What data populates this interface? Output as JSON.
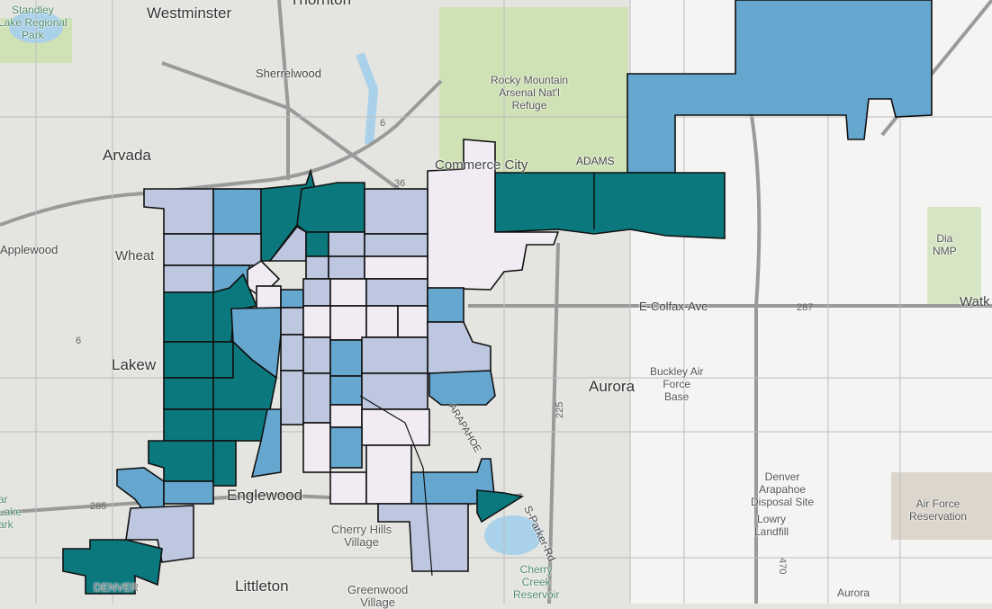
{
  "map": {
    "legend_colors": {
      "high": "#0b787d",
      "mid_high": "#66a7cf",
      "mid_low": "#bdc7e0",
      "low": "#f1ecf4"
    },
    "basemap_colors": {
      "land": "#e4e4e0",
      "park": "#cfe2b5",
      "water": "#a9d1ea",
      "road": "#9a9a9a"
    },
    "labels": {
      "standley": "Standley\nLake Regional\nPark",
      "westminster": "Westminster",
      "thornton": "Thornton",
      "sherrelwood": "Sherrelwood",
      "arvada": "Arvada",
      "commerce_city": "Commerce City",
      "adams": "ADAMS",
      "arsenal": "Rocky Mountain\nArsenal Nat'l\nRefuge",
      "applewood": "Applewood",
      "wheat": "Wheat",
      "lakew": "Lakew",
      "colfax": "E-Colfax-Ave",
      "watk": "Watk",
      "dia": "Dia\nNMP",
      "aurora": "Aurora",
      "buckley": "Buckley Air\nForce\nBase",
      "arapahoe": "ARAPAHOE",
      "disposal": "Denver\nArapahoe\nDisposal Site",
      "lowry": "Lowry\nLandfill",
      "afr": "Air Force\nReservation",
      "englewood": "Englewood",
      "cherry_hills": "Cherry Hills\nVillage",
      "littleton": "Littleton",
      "greenwood": "Greenwood\nVillage",
      "cherry_creek": "Cherry\nCreek\nReservoir",
      "parker_rd": "S-Parker-Rd",
      "aurora2": "Aurora",
      "denver": "DENVER",
      "bear_lake": "ar\nLake\nark"
    },
    "shields": {
      "r36": "36",
      "r6a": "6",
      "r6b": "6",
      "r287": "287",
      "r225": "225",
      "r285": "285",
      "r470": "470"
    }
  }
}
